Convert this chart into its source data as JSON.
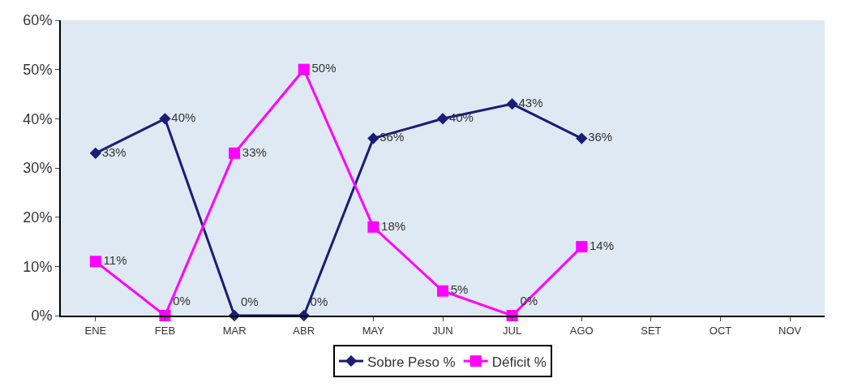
{
  "chart_data": {
    "type": "line",
    "categories": [
      "ENE",
      "FEB",
      "MAR",
      "ABR",
      "MAY",
      "JUN",
      "JUL",
      "AGO",
      "SET",
      "OCT",
      "NOV"
    ],
    "series": [
      {
        "name": "Sobre Peso %",
        "color": "#1c1c78",
        "marker": "diamond",
        "values": [
          33,
          40,
          0,
          0,
          36,
          40,
          43,
          36,
          null,
          null,
          null
        ],
        "value_labels": [
          "33%",
          "40%",
          "0%",
          "0%",
          "36%",
          "40%",
          "43%",
          "36%",
          null,
          null,
          null
        ]
      },
      {
        "name": "Déficit %",
        "color": "#ff00ff",
        "marker": "square",
        "values": [
          11,
          0,
          33,
          50,
          18,
          5,
          0,
          14,
          null,
          null,
          null
        ],
        "value_labels": [
          "11%",
          "0%",
          "33%",
          "50%",
          "18%",
          "5%",
          "0%",
          "14%",
          null,
          null,
          null
        ]
      }
    ],
    "ylim": [
      0,
      60
    ],
    "yticks": [
      {
        "value": 0,
        "label": "0%"
      },
      {
        "value": 10,
        "label": "10%"
      },
      {
        "value": 20,
        "label": "20%"
      },
      {
        "value": 30,
        "label": "30%"
      },
      {
        "value": 40,
        "label": "40%"
      },
      {
        "value": 50,
        "label": "50%"
      },
      {
        "value": 60,
        "label": "60%"
      }
    ],
    "grid": false,
    "legend": "bottom",
    "line_style": "solid"
  }
}
